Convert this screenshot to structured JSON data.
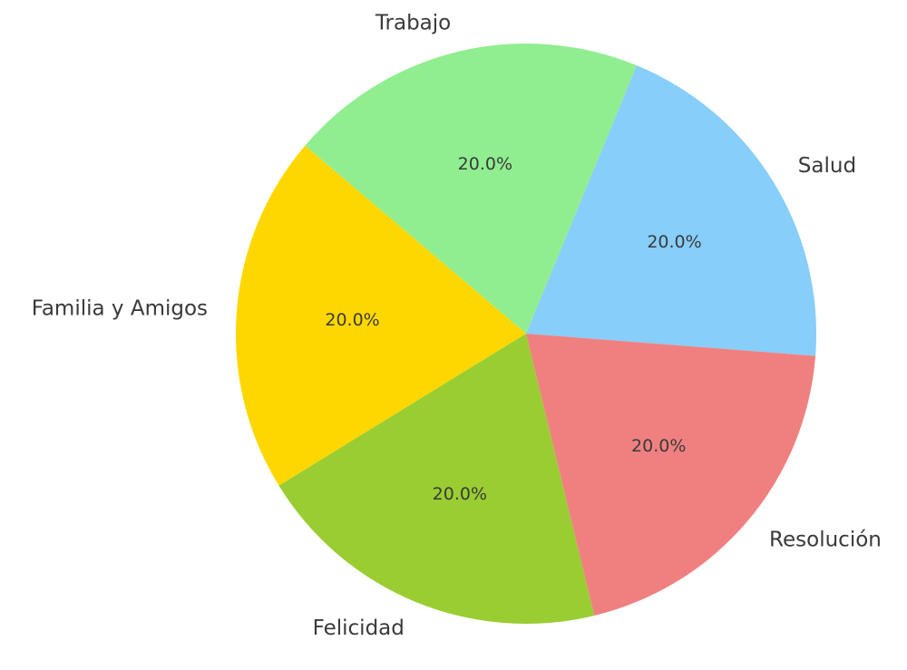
{
  "chart_data": {
    "type": "pie",
    "title": "",
    "slices": [
      {
        "label": "Salud",
        "value": 20.0,
        "pct_text": "20.0%",
        "color": "#87CEFA"
      },
      {
        "label": "Trabajo",
        "value": 20.0,
        "pct_text": "20.0%",
        "color": "#90EE90"
      },
      {
        "label": "Familia y Amigos",
        "value": 20.0,
        "pct_text": "20.0%",
        "color": "#FFD700"
      },
      {
        "label": "Felicidad",
        "value": 20.0,
        "pct_text": "20.0%",
        "color": "#9ACD32"
      },
      {
        "label": "Resolución",
        "value": 20.0,
        "pct_text": "20.0%",
        "color": "#F08080"
      }
    ],
    "start_angle_deg": -4.4,
    "direction": "counterclockwise",
    "legend": "none"
  }
}
